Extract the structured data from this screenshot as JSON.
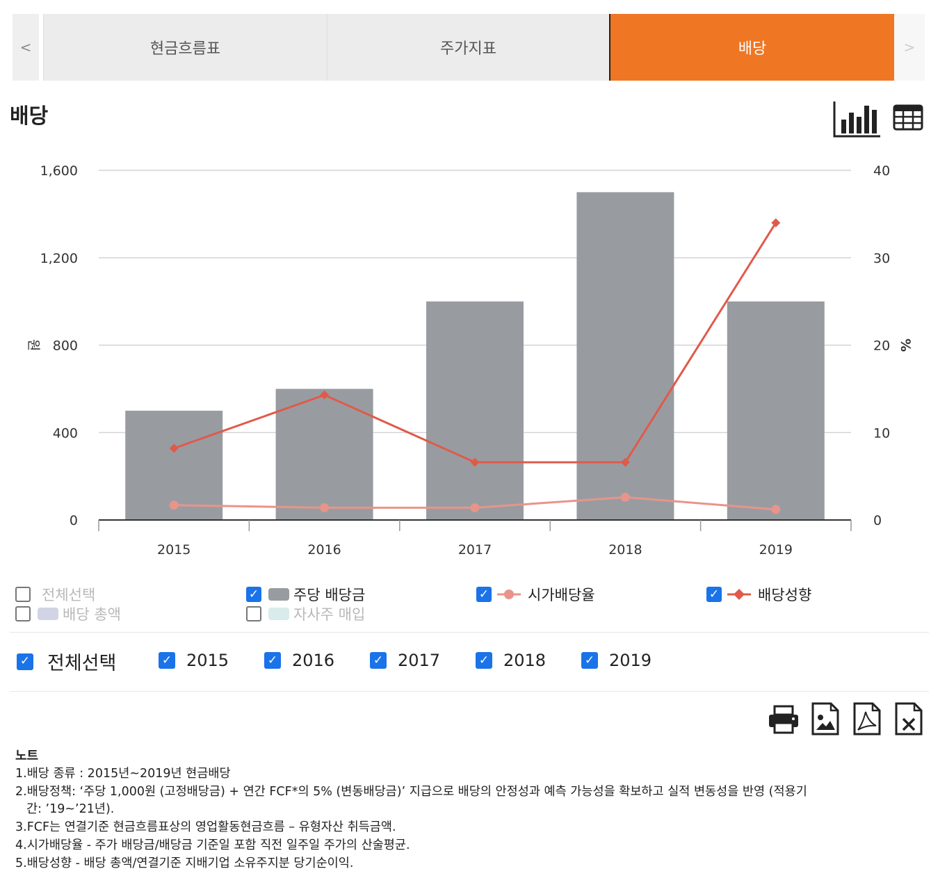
{
  "tabs": {
    "prev": "<",
    "next": ">",
    "items": [
      "현금흐름표",
      "주가지표",
      "배당"
    ]
  },
  "section_title": "배당",
  "colors": {
    "active_tab": "#ef7623",
    "bar": "#989ca1",
    "payout_line": "#e05a4a",
    "yield_line": "#e8948a",
    "check": "#1a73e8",
    "total_swatch": "#d0d4e4",
    "buyback_swatch": "#d8eceb"
  },
  "icons": [
    "bar-chart-icon",
    "table-icon",
    "print-icon",
    "image-icon",
    "pdf-icon",
    "excel-icon"
  ],
  "chart_data": {
    "type": "bar",
    "categories": [
      "2015",
      "2016",
      "2017",
      "2018",
      "2019"
    ],
    "series": [
      {
        "name": "주당 배당금",
        "type": "bar",
        "axis": "left",
        "values": [
          500,
          600,
          1000,
          1500,
          1000
        ]
      },
      {
        "name": "시가배당율",
        "type": "line",
        "axis": "right",
        "marker": "circle",
        "values": [
          1.7,
          1.4,
          1.4,
          2.6,
          1.2
        ]
      },
      {
        "name": "배당성향",
        "type": "line",
        "axis": "right",
        "marker": "diamond",
        "values": [
          8.2,
          14.3,
          6.6,
          6.6,
          34.0
        ]
      }
    ],
    "ylabel": "원",
    "y2label": "%",
    "ylim": [
      0,
      1600
    ],
    "y2lim": [
      0,
      40
    ],
    "yticks": [
      "0",
      "400",
      "800",
      "1,200",
      "1,600"
    ],
    "y2ticks": [
      "0",
      "10",
      "20",
      "30",
      "40"
    ],
    "grid": true
  },
  "legend": {
    "select_all": "전체선택",
    "total_dividend": "배당 총액",
    "dps": "주당 배당금",
    "buyback": "자사주 매입",
    "yield": "시가배당율",
    "payout": "배당성향"
  },
  "year_filter": {
    "select_all": "전체선택",
    "years": [
      "2015",
      "2016",
      "2017",
      "2018",
      "2019"
    ]
  },
  "notes": {
    "title": "노트",
    "line1": "1.배당 종류 : 2015년~2019년 현금배당",
    "line2a": "2.배당정책: ‘주당 1,000원 (고정배당금) + 연간 FCF*의 5% (변동배당금)’ 지급으로 배당의 안정성과 예측 가능성을 확보하고 실적 변동성을 반영 (적용기",
    "line2b": "간: ’19~’21년).",
    "line3": "3.FCF는 연결기준 현금흐름표상의 영업활동현금흐름 – 유형자산 취득금액.",
    "line4": "4.시가배당율 - 주가 배당금/배당금 기준일 포함 직전 일주일 주가의 산술평균.",
    "line5": "5.배당성향 - 배당 총액/연결기준 지배기업 소유주지분 당기순이익."
  }
}
